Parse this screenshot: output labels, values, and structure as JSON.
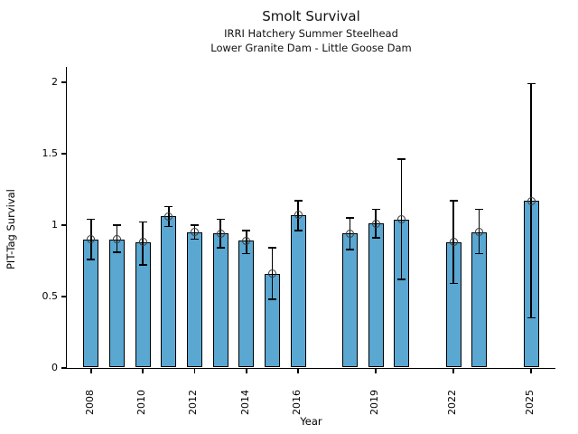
{
  "header": {
    "title": "Smolt Survival",
    "subtitle1": "IRRI Hatchery Summer Steelhead",
    "subtitle2": "Lower Granite Dam - Little Goose Dam"
  },
  "chart_data": {
    "type": "bar",
    "title": "Smolt Survival",
    "subtitles": [
      "IRRI Hatchery Summer Steelhead",
      "Lower Granite Dam - Little Goose Dam"
    ],
    "xlabel": "Year",
    "ylabel": "PIT-Tag Survival",
    "ylim": [
      0,
      2.1
    ],
    "ytick_values": [
      0,
      0.5,
      1,
      1.5,
      2
    ],
    "ytick_labels": [
      "0",
      "0.5",
      "1",
      "1.5",
      "2"
    ],
    "xtick_years": [
      2008,
      2010,
      2012,
      2014,
      2016,
      2019,
      2022,
      2025
    ],
    "x_year_range": [
      2008,
      2025
    ],
    "grid": false,
    "legend": "none",
    "bar_fill": "#5AA7D2",
    "bar_edge": "#000000",
    "errorbar_color": "#000000",
    "marker": "open-circle",
    "points": [
      {
        "year": 2008,
        "value": 0.9,
        "err_lo": 0.76,
        "err_hi": 1.04
      },
      {
        "year": 2009,
        "value": 0.9,
        "err_lo": 0.81,
        "err_hi": 1.0
      },
      {
        "year": 2010,
        "value": 0.88,
        "err_lo": 0.72,
        "err_hi": 1.02
      },
      {
        "year": 2011,
        "value": 1.06,
        "err_lo": 0.99,
        "err_hi": 1.13
      },
      {
        "year": 2012,
        "value": 0.95,
        "err_lo": 0.9,
        "err_hi": 1.0
      },
      {
        "year": 2013,
        "value": 0.94,
        "err_lo": 0.84,
        "err_hi": 1.04
      },
      {
        "year": 2014,
        "value": 0.89,
        "err_lo": 0.8,
        "err_hi": 0.96
      },
      {
        "year": 2015,
        "value": 0.66,
        "err_lo": 0.48,
        "err_hi": 0.84
      },
      {
        "year": 2016,
        "value": 1.07,
        "err_lo": 0.96,
        "err_hi": 1.17
      },
      {
        "year": 2018,
        "value": 0.94,
        "err_lo": 0.83,
        "err_hi": 1.05
      },
      {
        "year": 2019,
        "value": 1.01,
        "err_lo": 0.91,
        "err_hi": 1.11
      },
      {
        "year": 2020,
        "value": 1.04,
        "err_lo": 0.62,
        "err_hi": 1.46
      },
      {
        "year": 2022,
        "value": 0.88,
        "err_lo": 0.59,
        "err_hi": 1.17
      },
      {
        "year": 2023,
        "value": 0.95,
        "err_lo": 0.8,
        "err_hi": 1.11
      },
      {
        "year": 2025,
        "value": 1.17,
        "err_lo": 0.35,
        "err_hi": 1.99
      }
    ]
  }
}
